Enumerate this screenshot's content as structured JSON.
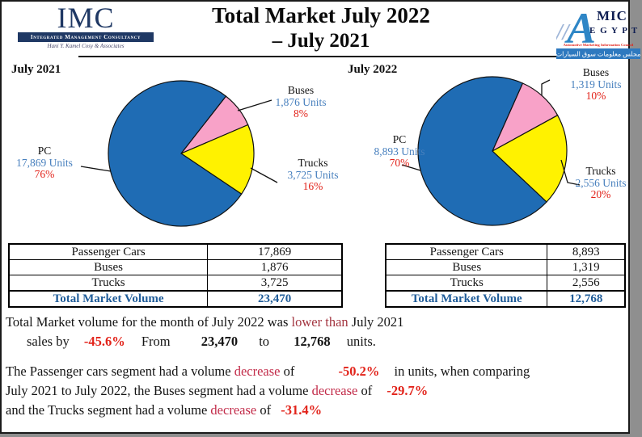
{
  "header": {
    "imc_logo": {
      "acronym": "IMC",
      "banner": "Integrated Management Consultancy",
      "tagline": "Hani Y. Kamel Cosy & Associates"
    },
    "title_line1": "Total Market July 2022",
    "title_line2": "– July 2021",
    "amic_logo": {
      "slashes": "//",
      "a": "A",
      "mic": "MIC",
      "egypt": "E G Y P T",
      "council": "Automotive Marketing Information Council",
      "arabic": "مجلس معلومات سوق السيارات"
    }
  },
  "colors": {
    "pie_blue": "#1f6cb4",
    "pie_pink": "#f8a2c8",
    "pie_yellow": "#fff200",
    "units_text_blue": "#4880be",
    "percent_text_red": "#e2231a",
    "total_row_blue": "#1f5c99",
    "imc_navy": "#1f3864",
    "amic_blue": "#2e86c6",
    "decrease_crimson": "#c22b49",
    "lower_than_maroon": "#a33540"
  },
  "chart_data": [
    {
      "type": "pie",
      "title": "July 2021",
      "total": 23470,
      "start_angle_deg": 52,
      "legend_position": "callout-labels",
      "slices": [
        {
          "name": "Buses",
          "value": 1876,
          "units_label": "1,876  Units",
          "percent": "8%",
          "color": "#f8a2c8"
        },
        {
          "name": "Trucks",
          "value": 3725,
          "units_label": "3,725 Units",
          "percent": "16%",
          "color": "#fff200"
        },
        {
          "name": "PC",
          "value": 17869,
          "units_label": "17,869 Units",
          "percent": "76%",
          "color": "#1f6cb4"
        }
      ]
    },
    {
      "type": "pie",
      "title": "July 2022",
      "total": 12768,
      "start_angle_deg": 66,
      "legend_position": "callout-labels",
      "slices": [
        {
          "name": "Buses",
          "value": 1319,
          "units_label": "1,319 Units",
          "percent": "10%",
          "color": "#f8a2c8"
        },
        {
          "name": "Trucks",
          "value": 2556,
          "units_label": "2,556 Units",
          "percent": "20%",
          "color": "#fff200"
        },
        {
          "name": "PC",
          "value": 8893,
          "units_label": "8,893 Units",
          "percent": "70%",
          "color": "#1f6cb4"
        }
      ]
    }
  ],
  "tables": [
    {
      "rows": [
        {
          "label": "Passenger Cars",
          "value": "17,869"
        },
        {
          "label": "Buses",
          "value": "1,876"
        },
        {
          "label": "Trucks",
          "value": "3,725"
        }
      ],
      "total_label": "Total Market Volume",
      "total_value": "23,470"
    },
    {
      "rows": [
        {
          "label": "Passenger Cars",
          "value": "8,893"
        },
        {
          "label": "Buses",
          "value": "1,319"
        },
        {
          "label": "Trucks",
          "value": "2,556"
        }
      ],
      "total_label": "Total Market Volume",
      "total_value": "12,768"
    }
  ],
  "summary": {
    "line1": {
      "a": "Total Market volume for the month of July 2022 was",
      "b": "lower than",
      "c": "July 2021"
    },
    "line2": {
      "a": "sales by",
      "b": "-45.6%",
      "c": "From",
      "d": "23,470",
      "e": "to",
      "f": "12,768",
      "g": "units."
    },
    "line3": {
      "a": "The Passenger cars segment had a volume",
      "b": "decrease",
      "c": "of",
      "d": "-50.2%",
      "e": "in units, when comparing"
    },
    "line4": {
      "a": "July 2021 to July 2022, the Buses segment had a volume",
      "b": "decrease",
      "c": "of",
      "d": "-29.7%"
    },
    "line5": {
      "a": "and the Trucks segment had a volume",
      "b": "decrease",
      "c": "of",
      "d": "-31.4%"
    }
  }
}
